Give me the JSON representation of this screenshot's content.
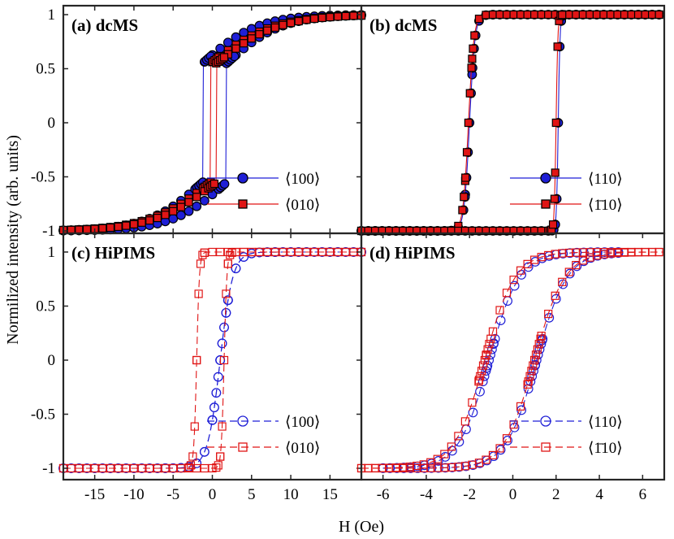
{
  "figure": {
    "ylabel": "Normilized intensity (arb. units)",
    "xlabel": "H (Oe)"
  },
  "colors": {
    "blue": "#1f1fd6",
    "red": "#e01515",
    "marker_edge": "#000000"
  },
  "chart_data": [
    {
      "type": "line",
      "title": "(a) dcMS",
      "xlim": [
        -19,
        19
      ],
      "ylim": [
        -1.05,
        1.05
      ],
      "xticks": [],
      "yticks": [
        -1,
        -0.5,
        0,
        0.5,
        1
      ],
      "ytick_labels": [
        "-1",
        "-0.5",
        "0",
        "0.5",
        "1"
      ],
      "xticks_hidden": [
        -15,
        -10,
        -5,
        0,
        5,
        10,
        15
      ],
      "model": {
        "filled": true,
        "dashed": false
      },
      "legend": [
        "⟨100⟩",
        "⟨010⟩"
      ],
      "series": [
        {
          "name": "⟨100⟩",
          "color": "blue",
          "marker": "circle",
          "H_switch": [
            -1.2,
            1.8
          ],
          "step_up": [
            -0.55,
            0.55
          ],
          "slow_width": 7,
          "x": [
            -19,
            19
          ]
        },
        {
          "name": "⟨010⟩",
          "color": "red",
          "marker": "square",
          "H_switch": [
            -0.2,
            0.5
          ],
          "step_up": [
            -0.6,
            0.5
          ],
          "slow_width": 8,
          "x": [
            -19,
            19
          ]
        }
      ]
    },
    {
      "type": "line",
      "title": "(b) dcMS",
      "xlim": [
        -7,
        7
      ],
      "ylim": [
        -1.05,
        1.05
      ],
      "xticks": [],
      "yticks": [],
      "model": {
        "filled": true,
        "dashed": false
      },
      "legend": [
        "⟨110⟩",
        "⟨1̄10⟩"
      ],
      "series": [
        {
          "name": "⟨110⟩",
          "color": "blue",
          "marker": "circle",
          "H_switch": [
            -2.0,
            2.1
          ],
          "x": [
            -7,
            7
          ]
        },
        {
          "name": "⟨1̄10⟩",
          "color": "red",
          "marker": "square",
          "H_switch": [
            -2.05,
            2.0
          ],
          "x": [
            -7,
            7
          ]
        }
      ]
    },
    {
      "type": "line",
      "title": "(c) HiPIMS",
      "xlim": [
        -19,
        19
      ],
      "ylim": [
        -1.05,
        1.05
      ],
      "xticks": [
        -15,
        -10,
        -5,
        0,
        5,
        10,
        15
      ],
      "xtick_labels": [
        "-15",
        "-10",
        "-5",
        "0",
        "5",
        "10",
        "15"
      ],
      "yticks": [
        -1,
        -0.5,
        0,
        0.5,
        1
      ],
      "ytick_labels": [
        "-1",
        "-0.5",
        "0",
        "0.5",
        "1"
      ],
      "model": {
        "filled": false,
        "dashed": true
      },
      "legend": [
        "⟨100⟩",
        "⟨010⟩"
      ],
      "series": [
        {
          "name": "⟨100⟩",
          "color": "blue",
          "marker": "circle",
          "H_switch": [
            1.0,
            1.0
          ],
          "width": 1.6,
          "x": [
            -19,
            19
          ]
        },
        {
          "name": "⟨010⟩",
          "color": "red",
          "marker": "square",
          "H_switch": [
            -2.0,
            1.5
          ],
          "width": 0.35,
          "x": [
            -19,
            19
          ]
        }
      ]
    },
    {
      "type": "line",
      "title": "(d) HiPIMS",
      "xlim": [
        -7,
        7
      ],
      "ylim": [
        -1.05,
        1.05
      ],
      "xticks": [
        -6,
        -4,
        -2,
        0,
        2,
        4,
        6
      ],
      "xtick_labels": [
        "-6",
        "-4",
        "-2",
        "0",
        "2",
        "4",
        "6"
      ],
      "yticks": [],
      "model": {
        "filled": false,
        "dashed": true
      },
      "legend": [
        "⟨110⟩",
        "⟨1̄10⟩"
      ],
      "series": [
        {
          "name": "⟨110⟩",
          "color": "blue",
          "marker": "circle",
          "H_switch": [
            -1.1,
            1.1
          ],
          "x": [
            -6,
            5
          ]
        },
        {
          "name": "⟨1̄10⟩",
          "color": "red",
          "marker": "square",
          "H_switch": [
            -1.3,
            1.0
          ],
          "x": [
            -7,
            7
          ]
        }
      ]
    }
  ]
}
